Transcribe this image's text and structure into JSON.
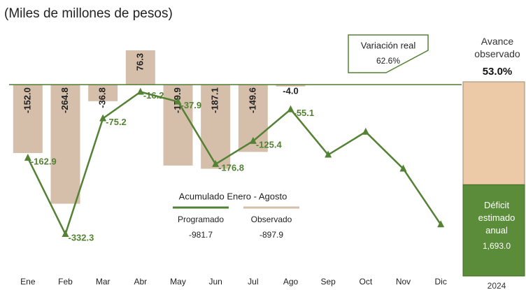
{
  "chart_data": {
    "type": "bar-line",
    "title": "(Miles de millones de pesos)",
    "categories": [
      "Ene",
      "Feb",
      "Mar",
      "Abr",
      "May",
      "Jun",
      "Jul",
      "Ago",
      "Sep",
      "Oct",
      "Nov",
      "Dic"
    ],
    "series": [
      {
        "name": "Observado",
        "type": "bar",
        "color": "#d6bfaa",
        "total": -897.9,
        "values": [
          -152.0,
          -264.8,
          -36.8,
          76.3,
          -179.9,
          -187.1,
          -149.6,
          -4.0,
          null,
          null,
          null,
          null
        ],
        "value_labels": [
          "-152.0",
          "-264.8",
          "-36.8",
          "76.3",
          "-179.9",
          "-187.1",
          "-149.6",
          "-4.0",
          null,
          null,
          null,
          null
        ]
      },
      {
        "name": "Programado",
        "type": "line",
        "color": "#548235",
        "total": -981.7,
        "values": [
          -162.9,
          -332.3,
          -75.2,
          -16.2,
          -37.9,
          -176.8,
          -125.4,
          -55.1,
          -156,
          -105,
          -187,
          -311
        ],
        "value_labels": [
          "-162.9",
          "-332.3",
          "-75.2",
          "-16.2",
          "-37.9",
          "-176.8",
          "-125.4",
          "-55.1",
          null,
          null,
          null,
          null
        ]
      }
    ],
    "summary_title": "Acumulado Enero - Agosto",
    "annotation": {
      "title": "Variación real",
      "label": "62.6%"
    },
    "annual": {
      "heading": "Avance observado",
      "progress": 53.0,
      "progress_label": "53.0%",
      "total_heading": "Déficit estimado anual",
      "total_label": "1,693.0",
      "year": "2024",
      "colors": [
        "#eccaa7",
        "#5b8c3a"
      ]
    }
  }
}
